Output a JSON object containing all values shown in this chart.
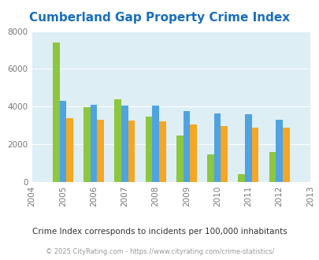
{
  "title": "Cumberland Gap Property Crime Index",
  "years": [
    2004,
    2005,
    2006,
    2007,
    2008,
    2009,
    2010,
    2011,
    2012,
    2013
  ],
  "cumberland_gap": [
    null,
    7400,
    3950,
    4375,
    3450,
    2450,
    1450,
    400,
    1600,
    null
  ],
  "tennessee": [
    null,
    4300,
    4100,
    4050,
    4050,
    3750,
    3650,
    3600,
    3300,
    null
  ],
  "national": [
    null,
    3400,
    3300,
    3250,
    3200,
    3050,
    2950,
    2900,
    2900,
    null
  ],
  "cumberland_color": "#8dc63f",
  "tennessee_color": "#4fa3e0",
  "national_color": "#f5a623",
  "bg_color": "#ddeef4",
  "title_color": "#1a6ebd",
  "ylim": [
    0,
    8000
  ],
  "yticks": [
    0,
    2000,
    4000,
    6000,
    8000
  ],
  "subtitle": "Crime Index corresponds to incidents per 100,000 inhabitants",
  "footer": "© 2025 CityRating.com - https://www.cityrating.com/crime-statistics/",
  "bar_width": 0.22
}
